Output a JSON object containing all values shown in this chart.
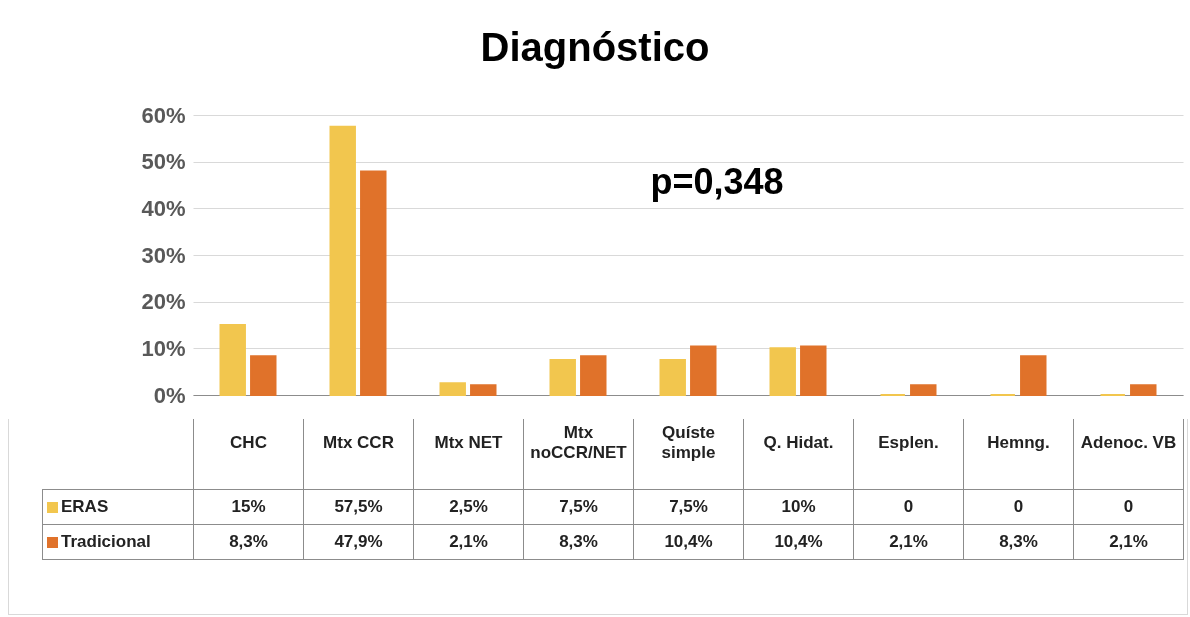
{
  "chart_data": {
    "type": "bar",
    "title": "Diagnóstico",
    "categories": [
      "CHC",
      "Mtx CCR",
      "Mtx NET",
      "Mtx noCCR/NET",
      "Quíste simple",
      "Q. Hidat.",
      "Esplen.",
      "Hemng.",
      "Adenoc. VB"
    ],
    "series": [
      {
        "name": "ERAS",
        "color": "#f2c64e",
        "values": [
          15,
          57.5,
          2.5,
          7.5,
          7.5,
          10,
          0,
          0,
          0
        ],
        "value_labels": [
          "15%",
          "57,5%",
          "2,5%",
          "7,5%",
          "7,5%",
          "10%",
          "0",
          "0",
          "0"
        ]
      },
      {
        "name": "Tradicional",
        "color": "#e0722a",
        "values": [
          8.3,
          47.9,
          2.1,
          8.3,
          10.4,
          10.4,
          2.1,
          8.3,
          2.1
        ],
        "value_labels": [
          "8,3%",
          "47,9%",
          "2,1%",
          "8,3%",
          "10,4%",
          "10,4%",
          "2,1%",
          "8,3%",
          "2,1%"
        ]
      }
    ],
    "ylim": [
      0,
      60
    ],
    "yticks": [
      {
        "value": 0,
        "label": "0%"
      },
      {
        "value": 10,
        "label": "10%"
      },
      {
        "value": 20,
        "label": "20%"
      },
      {
        "value": 30,
        "label": "30%"
      },
      {
        "value": 40,
        "label": "40%"
      },
      {
        "value": 50,
        "label": "50%"
      },
      {
        "value": 60,
        "label": "60%"
      }
    ],
    "grid": "y",
    "legend": "bottom",
    "annotations": [
      "p=0,348"
    ]
  }
}
